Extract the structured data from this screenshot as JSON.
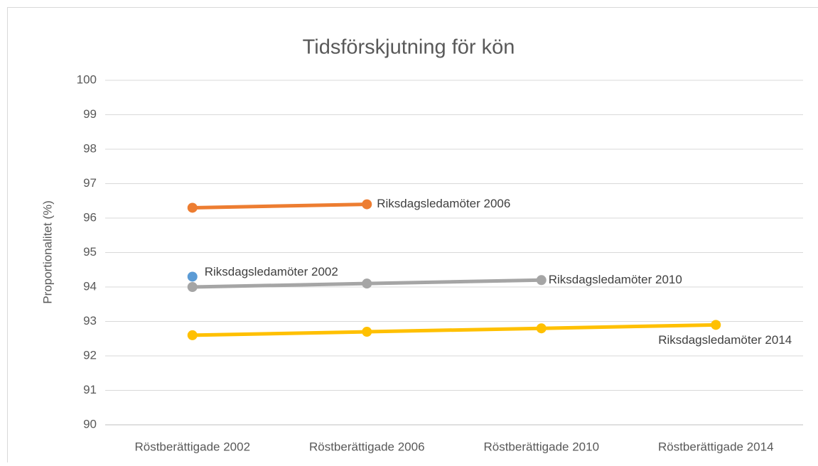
{
  "chart_data": {
    "type": "line",
    "title": "Tidsförskjutning för kön",
    "y_label": "Proportionalitet (%)",
    "categories": [
      "Röstberättigade 2002",
      "Röstberättigade 2006",
      "Röstberättigade 2010",
      "Röstberättigade 2014"
    ],
    "series": [
      {
        "name": "Riksdagsledamöter 2002",
        "color": "#5b9bd5",
        "values": [
          94.3,
          null,
          null,
          null
        ]
      },
      {
        "name": "Riksdagsledamöter 2006",
        "color": "#ed7d31",
        "values": [
          96.3,
          96.4,
          null,
          null
        ]
      },
      {
        "name": "Riksdagsledamöter 2010",
        "color": "#a5a5a5",
        "values": [
          94.0,
          94.1,
          94.2,
          null
        ]
      },
      {
        "name": "Riksdagsledamöter 2014",
        "color": "#ffc000",
        "values": [
          92.6,
          92.7,
          92.8,
          92.9
        ]
      }
    ],
    "ylim": [
      90,
      100
    ],
    "yticks": [
      90,
      91,
      92,
      93,
      94,
      95,
      96,
      97,
      98,
      99,
      100
    ],
    "grid": true
  }
}
